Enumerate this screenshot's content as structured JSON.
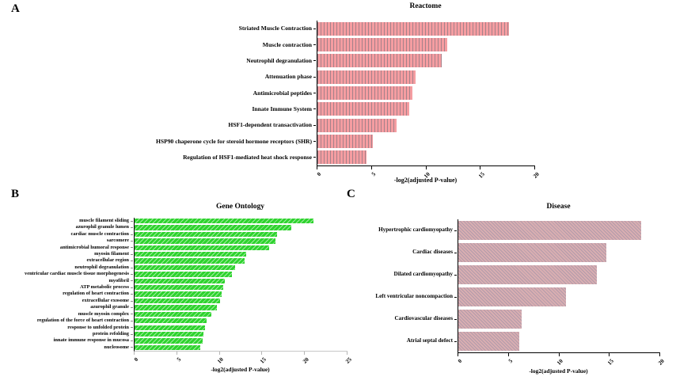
{
  "chart_data": [
    {
      "type": "bar",
      "orientation": "horizontal",
      "panel_label": "A",
      "title": "Reactome",
      "xlabel": "-log2(adjusted P-value)",
      "xlim": [
        0,
        20
      ],
      "xticks": [
        0,
        5,
        10,
        15,
        20
      ],
      "bar_color": "#f59da1",
      "hatch": "vertical-gray-stripes",
      "grid": false,
      "legend": "none",
      "categories": [
        "Striated Muscle Contraction",
        "Muscle contraction",
        "Neutrophil degranulation",
        "Attenuation phase",
        "Antimicrobial peptides",
        "Innate Immune System",
        "HSF1-dependent transactivation",
        "HSP90 chaperone cycle for steroid hormone receptors (SHR)",
        "Regulation of HSF1-mediated heat shock response"
      ],
      "values": [
        17.6,
        11.9,
        11.4,
        9.0,
        8.7,
        8.4,
        7.3,
        5.1,
        4.5
      ]
    },
    {
      "type": "bar",
      "orientation": "horizontal",
      "panel_label": "B",
      "title": "Gene Ontology",
      "xlabel": "-log2(adjusted P-value)",
      "xlim": [
        0,
        25
      ],
      "xticks": [
        0,
        5,
        10,
        15,
        20,
        25
      ],
      "bar_color": "#2ed32e",
      "hatch": "diagonal-light-stripes",
      "grid": false,
      "legend": "none",
      "categories": [
        "muscle filament sliding",
        "azurophil granule lumen",
        "cardiac muscle contraction",
        "sarcomere",
        "antimicrobial humoral response",
        "myosin filament",
        "extracellular region",
        "neutrophil degranulation",
        "ventricular cardiac muscle tissue morphogenesis",
        "myofibril",
        "ATP metabolic process",
        "regulation of heart contraction",
        "extracellular exosome",
        "azurophil granule",
        "muscle myosin complex",
        "regulation of the force of heart contraction",
        "response to unfolded protein",
        "protein refolding",
        "innate immune response in mucosa",
        "nucleosome"
      ],
      "values": [
        21.0,
        18.4,
        16.7,
        16.5,
        15.8,
        13.1,
        12.9,
        11.8,
        11.4,
        10.6,
        10.4,
        10.2,
        10.0,
        9.7,
        9.0,
        8.5,
        8.3,
        8.1,
        8.0,
        7.7
      ]
    },
    {
      "type": "bar",
      "orientation": "horizontal",
      "panel_label": "C",
      "title": "Disease",
      "xlabel": "-log2(adjusted P-value)",
      "xlim": [
        0,
        20
      ],
      "xticks": [
        0,
        5,
        10,
        15,
        20
      ],
      "bar_color": "#d9aeb1",
      "hatch": "diagonal-gray-stripes",
      "grid": false,
      "legend": "none",
      "categories": [
        "Hypertrophic cardiomyopathy",
        "Cardiac diseases",
        "Dilated cardiomyopathy",
        "Left ventricular noncompaction",
        "Cardiovascular diseases",
        "Atrial septal defect"
      ],
      "values": [
        18.1,
        14.7,
        13.7,
        10.7,
        6.3,
        6.0
      ]
    }
  ]
}
